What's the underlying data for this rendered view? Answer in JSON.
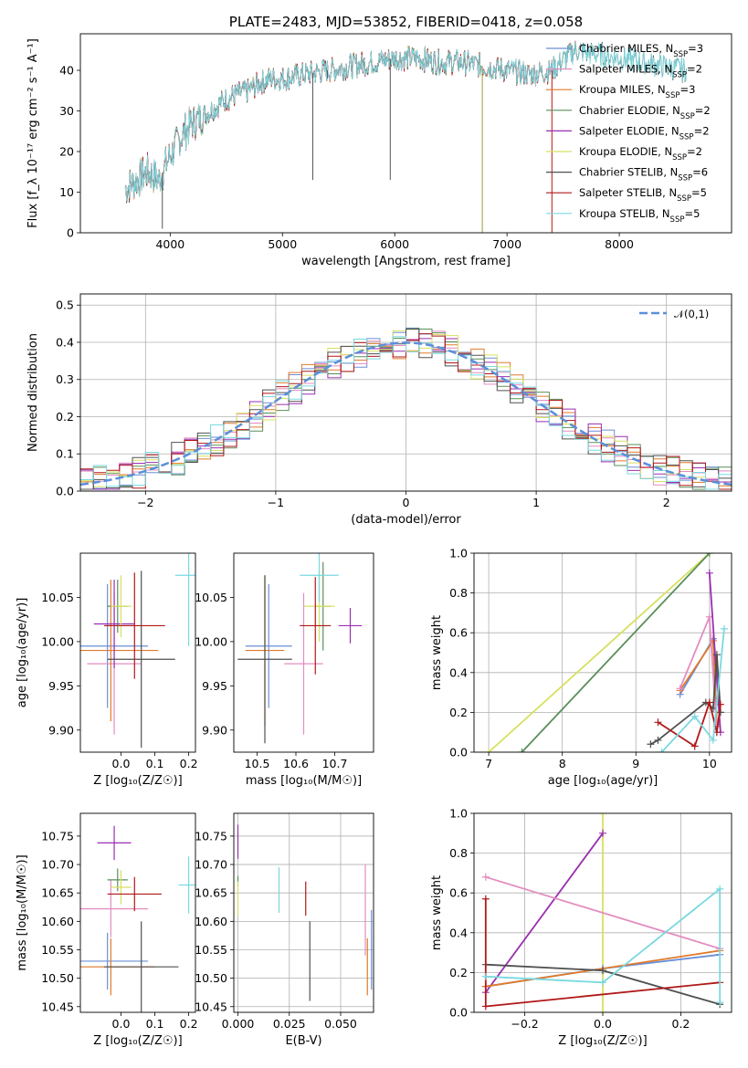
{
  "colors": {
    "Chabrier MILES": "#6a8fd8",
    "Salpeter MILES": "#e48cc0",
    "Kroupa MILES": "#e07a2a",
    "Chabrier ELODIE": "#5a8f5a",
    "Salpeter ELODIE": "#9a2fb0",
    "Kroupa ELODIE": "#d8e060",
    "Chabrier STELIB": "#505050",
    "Salpeter STELIB": "#b01818",
    "Kroupa STELIB": "#7ad8e0",
    "normal": "#5b8fd9"
  },
  "chart_data": [
    {
      "id": "spectrum",
      "type": "line",
      "title": "PLATE=2483, MJD=53852, FIBERID=0418, z=0.058",
      "xlabel": "wavelength [Angstrom, rest frame]",
      "ylabel": "Flux [f_λ 10⁻¹⁷ erg cm⁻² s⁻¹ A⁻¹]",
      "xlim": [
        3200,
        9000
      ],
      "ylim": [
        0,
        49
      ],
      "x_ticks": [
        4000,
        5000,
        6000,
        7000,
        8000
      ],
      "y_ticks": [
        0,
        10,
        20,
        30,
        40
      ],
      "grid": false,
      "legend_position": "right",
      "continuum": {
        "x": [
          3600,
          3700,
          3800,
          3900,
          4000,
          4100,
          4200,
          4300,
          4400,
          4500,
          4600,
          4700,
          4800,
          4900,
          5000,
          5200,
          5400,
          5600,
          5800,
          6000,
          6200,
          6400,
          6600,
          6800,
          7000,
          7200,
          7400,
          7600,
          7800,
          8000,
          8200,
          8400,
          8600
        ],
        "y": [
          11,
          13,
          15,
          13,
          19,
          24,
          27,
          29,
          31,
          33,
          34,
          35,
          37,
          38,
          38,
          39,
          40,
          41,
          42,
          43,
          43,
          42,
          42,
          41,
          40,
          39,
          40,
          45,
          44,
          43,
          42,
          41,
          40
        ]
      },
      "dips": [
        {
          "x": 3930,
          "y": 1
        },
        {
          "x": 5270,
          "y": 13
        },
        {
          "x": 5400,
          "y": 38
        },
        {
          "x": 5960,
          "y": 13
        },
        {
          "x": 6780,
          "y": 0
        },
        {
          "x": 7400,
          "y": 0
        }
      ],
      "series": [
        {
          "name": "Chabrier MILES, N_SSP=3",
          "color_key": "Chabrier MILES",
          "x_end": 7700
        },
        {
          "name": "Salpeter MILES, N_SSP=2",
          "color_key": "Salpeter MILES",
          "x_end": 7700
        },
        {
          "name": "Kroupa MILES, N_SSP=3",
          "color_key": "Kroupa MILES",
          "x_end": 7700
        },
        {
          "name": "Chabrier ELODIE, N_SSP=2",
          "color_key": "Chabrier ELODIE",
          "x_end": 7000
        },
        {
          "name": "Salpeter ELODIE, N_SSP=2",
          "color_key": "Salpeter ELODIE",
          "x_end": 7000
        },
        {
          "name": "Kroupa ELODIE, N_SSP=2",
          "color_key": "Kroupa ELODIE",
          "x_end": 7000
        },
        {
          "name": "Chabrier STELIB, N_SSP=6",
          "color_key": "Chabrier STELIB",
          "x_end": 8600
        },
        {
          "name": "Salpeter STELIB, N_SSP=5",
          "color_key": "Salpeter STELIB",
          "x_end": 7400
        },
        {
          "name": "Kroupa STELIB, N_SSP=5",
          "color_key": "Kroupa STELIB",
          "x_end": 8600
        }
      ]
    },
    {
      "id": "residuals",
      "type": "histogram",
      "xlabel": "(data-model)/error",
      "ylabel": "Normed distribution",
      "xlim": [
        -2.5,
        2.5
      ],
      "ylim": [
        0,
        0.53
      ],
      "x_ticks": [
        -2,
        -1,
        0,
        1,
        2
      ],
      "y_ticks": [
        0.0,
        0.1,
        0.2,
        0.3,
        0.4,
        0.5
      ],
      "grid": true,
      "legend": {
        "label": "𝒩(0,1)",
        "position": "top-right"
      },
      "bin_width": 0.1
    },
    {
      "id": "age-vs-Z",
      "type": "errorbar",
      "xlabel": "Z [log₁₀(Z/Z☉)]",
      "ylabel": "age  [log₁₀(age/yr)]",
      "xlim": [
        -0.12,
        0.22
      ],
      "ylim": [
        9.875,
        10.1
      ],
      "x_ticks": [
        0.0,
        0.1,
        0.2
      ],
      "y_ticks": [
        9.9,
        9.95,
        10.0,
        10.05
      ],
      "grid": false,
      "points": [
        {
          "key": "Chabrier MILES",
          "x": -0.04,
          "xerr": 0.12,
          "y": 9.995,
          "yerr": 0.07
        },
        {
          "key": "Salpeter MILES",
          "x": -0.02,
          "xerr": 0.08,
          "y": 9.975,
          "yerr": 0.08
        },
        {
          "key": "Kroupa MILES",
          "x": -0.03,
          "xerr": 0.14,
          "y": 9.99,
          "yerr": 0.08
        },
        {
          "key": "Chabrier ELODIE",
          "x": -0.01,
          "xerr": 0.03,
          "y": 10.04,
          "yerr": 0.03
        },
        {
          "key": "Salpeter ELODIE",
          "x": -0.02,
          "xerr": 0.06,
          "y": 10.02,
          "yerr": 0.05
        },
        {
          "key": "Kroupa ELODIE",
          "x": 0.0,
          "xerr": 0.03,
          "y": 10.04,
          "yerr": 0.035
        },
        {
          "key": "Chabrier STELIB",
          "x": 0.06,
          "xerr": 0.1,
          "y": 9.98,
          "yerr": 0.1
        },
        {
          "key": "Salpeter STELIB",
          "x": 0.04,
          "xerr": 0.09,
          "y": 10.018,
          "yerr": 0.06
        },
        {
          "key": "Kroupa STELIB",
          "x": 0.2,
          "xerr": 0.04,
          "y": 10.075,
          "yerr": 0.08
        }
      ]
    },
    {
      "id": "age-vs-mass",
      "type": "errorbar",
      "xlabel": "mass [log₁₀(M/M☉)]",
      "ylabel": "",
      "xlim": [
        10.44,
        10.8
      ],
      "ylim": [
        9.875,
        10.1
      ],
      "x_ticks": [
        10.5,
        10.6,
        10.7
      ],
      "y_ticks": [
        9.9,
        9.95,
        10.0,
        10.05
      ],
      "grid": false,
      "points": [
        {
          "key": "Chabrier MILES",
          "x": 10.53,
          "xerr": 0.06,
          "y": 9.995,
          "yerr": 0.07
        },
        {
          "key": "Salpeter MILES",
          "x": 10.62,
          "xerr": 0.05,
          "y": 9.975,
          "yerr": 0.08
        },
        {
          "key": "Kroupa MILES",
          "x": 10.52,
          "xerr": 0.05,
          "y": 9.99,
          "yerr": 0.085
        },
        {
          "key": "Chabrier ELODIE",
          "x": 10.67,
          "xerr": 0.02,
          "y": 10.04,
          "yerr": 0.05
        },
        {
          "key": "Salpeter ELODIE",
          "x": 10.74,
          "xerr": 0.03,
          "y": 10.018,
          "yerr": 0.02
        },
        {
          "key": "Kroupa ELODIE",
          "x": 10.66,
          "xerr": 0.04,
          "y": 10.04,
          "yerr": 0.04
        },
        {
          "key": "Chabrier STELIB",
          "x": 10.52,
          "xerr": 0.07,
          "y": 9.98,
          "yerr": 0.095
        },
        {
          "key": "Salpeter STELIB",
          "x": 10.65,
          "xerr": 0.04,
          "y": 10.018,
          "yerr": 0.055
        },
        {
          "key": "Kroupa STELIB",
          "x": 10.66,
          "xerr": 0.05,
          "y": 10.075,
          "yerr": 0.03
        }
      ]
    },
    {
      "id": "weight-vs-age",
      "type": "line",
      "xlabel": "age  [log₁₀(age/yr)]",
      "ylabel": "mass weight",
      "xlim": [
        6.8,
        10.3
      ],
      "ylim": [
        0,
        1
      ],
      "x_ticks": [
        7,
        8,
        9,
        10
      ],
      "y_ticks": [
        0.0,
        0.2,
        0.4,
        0.6,
        0.8,
        1.0
      ],
      "grid": true,
      "series": [
        {
          "key": "Kroupa ELODIE",
          "x": [
            7.0,
            10.0
          ],
          "y": [
            0.0,
            1.0
          ]
        },
        {
          "key": "Chabrier ELODIE",
          "x": [
            7.45,
            10.0
          ],
          "y": [
            0.0,
            1.0
          ]
        },
        {
          "key": "Chabrier MILES",
          "x": [
            9.6,
            10.05,
            10.1
          ],
          "y": [
            0.29,
            0.57,
            0.14
          ]
        },
        {
          "key": "Kroupa MILES",
          "x": [
            9.6,
            10.05,
            10.1
          ],
          "y": [
            0.31,
            0.56,
            0.13
          ]
        },
        {
          "key": "Salpeter MILES",
          "x": [
            9.6,
            10.0,
            10.1
          ],
          "y": [
            0.32,
            0.68,
            0.1
          ]
        },
        {
          "key": "Salpeter ELODIE",
          "x": [
            10.0,
            10.15
          ],
          "y": [
            0.9,
            0.1
          ]
        },
        {
          "key": "Chabrier STELIB",
          "x": [
            9.2,
            9.3,
            9.95,
            10.05,
            10.1,
            10.15
          ],
          "y": [
            0.04,
            0.06,
            0.25,
            0.22,
            0.49,
            0.2
          ]
        },
        {
          "key": "Salpeter STELIB",
          "x": [
            9.3,
            9.8,
            10.0,
            10.1,
            10.15
          ],
          "y": [
            0.15,
            0.03,
            0.25,
            0.1,
            0.24
          ]
        },
        {
          "key": "Kroupa STELIB",
          "x": [
            9.35,
            9.8,
            10.05,
            10.2
          ],
          "y": [
            0.0,
            0.18,
            0.06,
            0.62
          ]
        }
      ]
    },
    {
      "id": "mass-vs-Z",
      "type": "errorbar",
      "xlabel": "Z [log₁₀(Z/Z☉)]",
      "ylabel": "mass [log₁₀(M/M☉)]",
      "xlim": [
        -0.12,
        0.22
      ],
      "ylim": [
        10.44,
        10.79
      ],
      "x_ticks": [
        0.0,
        0.1,
        0.2
      ],
      "y_ticks": [
        10.45,
        10.5,
        10.55,
        10.6,
        10.65,
        10.7,
        10.75
      ],
      "grid": false,
      "points": [
        {
          "key": "Chabrier MILES",
          "x": -0.04,
          "xerr": 0.12,
          "y": 10.53,
          "yerr": 0.05
        },
        {
          "key": "Salpeter MILES",
          "x": -0.03,
          "xerr": 0.11,
          "y": 10.622,
          "yerr": 0.05
        },
        {
          "key": "Kroupa MILES",
          "x": -0.03,
          "xerr": 0.13,
          "y": 10.52,
          "yerr": 0.05
        },
        {
          "key": "Chabrier ELODIE",
          "x": -0.01,
          "xerr": 0.03,
          "y": 10.673,
          "yerr": 0.02
        },
        {
          "key": "Salpeter ELODIE",
          "x": -0.02,
          "xerr": 0.05,
          "y": 10.738,
          "yerr": 0.03
        },
        {
          "key": "Kroupa ELODIE",
          "x": 0.0,
          "xerr": 0.03,
          "y": 10.66,
          "yerr": 0.03
        },
        {
          "key": "Chabrier STELIB",
          "x": 0.06,
          "xerr": 0.11,
          "y": 10.52,
          "yerr": 0.08
        },
        {
          "key": "Salpeter STELIB",
          "x": 0.04,
          "xerr": 0.08,
          "y": 10.648,
          "yerr": 0.03
        },
        {
          "key": "Kroupa STELIB",
          "x": 0.2,
          "xerr": 0.03,
          "y": 10.664,
          "yerr": 0.05
        }
      ]
    },
    {
      "id": "mass-vs-ebv",
      "type": "errorbar",
      "xlabel": "E(B-V)",
      "ylabel": "",
      "xlim": [
        -0.002,
        0.066
      ],
      "ylim": [
        10.44,
        10.79
      ],
      "x_ticks": [
        0.0,
        0.025,
        0.05
      ],
      "y_ticks": [
        10.45,
        10.5,
        10.55,
        10.6,
        10.65,
        10.7,
        10.75
      ],
      "grid": true,
      "points": [
        {
          "key": "Chabrier MILES",
          "x": 0.065,
          "xerr": 0.0,
          "y": 10.55,
          "yerr": 0.07
        },
        {
          "key": "Salpeter MILES",
          "x": 0.062,
          "xerr": 0.0,
          "y": 10.62,
          "yerr": 0.08
        },
        {
          "key": "Kroupa MILES",
          "x": 0.063,
          "xerr": 0.0,
          "y": 10.52,
          "yerr": 0.05
        },
        {
          "key": "Chabrier ELODIE",
          "x": 0.0,
          "xerr": 0.0,
          "y": 10.67,
          "yerr": 0.01
        },
        {
          "key": "Salpeter ELODIE",
          "x": 0.0,
          "xerr": 0.0,
          "y": 10.74,
          "yerr": 0.03
        },
        {
          "key": "Kroupa ELODIE",
          "x": 0.0,
          "xerr": 0.0,
          "y": 10.64,
          "yerr": 0.03
        },
        {
          "key": "Chabrier STELIB",
          "x": 0.035,
          "xerr": 0.0,
          "y": 10.53,
          "yerr": 0.07
        },
        {
          "key": "Salpeter STELIB",
          "x": 0.033,
          "xerr": 0.0,
          "y": 10.64,
          "yerr": 0.03
        },
        {
          "key": "Kroupa STELIB",
          "x": 0.02,
          "xerr": 0.0,
          "y": 10.655,
          "yerr": 0.04
        }
      ]
    },
    {
      "id": "weight-vs-Z",
      "type": "line",
      "xlabel": "Z [log₁₀(Z/Z☉)]",
      "ylabel": "mass weight",
      "xlim": [
        -0.33,
        0.33
      ],
      "ylim": [
        0,
        1
      ],
      "x_ticks": [
        -0.2,
        0.0,
        0.2
      ],
      "y_ticks": [
        0.0,
        0.2,
        0.4,
        0.6,
        0.8,
        1.0
      ],
      "grid": true,
      "series": [
        {
          "key": "Kroupa ELODIE",
          "x": [
            0.0,
            0.0
          ],
          "y": [
            0.0,
            1.0
          ]
        },
        {
          "key": "Salpeter ELODIE",
          "x": [
            -0.3,
            0.0
          ],
          "y": [
            0.1,
            0.9
          ]
        },
        {
          "key": "Salpeter MILES",
          "x": [
            -0.3,
            0.3
          ],
          "y": [
            0.68,
            0.32
          ]
        },
        {
          "key": "Chabrier MILES",
          "x": [
            -0.3,
            0.0,
            0.3
          ],
          "y": [
            0.13,
            0.22,
            0.29
          ]
        },
        {
          "key": "Kroupa MILES",
          "x": [
            -0.3,
            0.3
          ],
          "y": [
            0.13,
            0.31
          ]
        },
        {
          "key": "Chabrier STELIB",
          "x": [
            -0.3,
            0.0,
            0.3
          ],
          "y": [
            0.24,
            0.21,
            0.04
          ]
        },
        {
          "key": "Salpeter STELIB",
          "x": [
            -0.3,
            -0.3,
            0.3
          ],
          "y": [
            0.57,
            0.03,
            0.15
          ]
        },
        {
          "key": "Kroupa STELIB",
          "x": [
            -0.3,
            0.0,
            0.3,
            0.3
          ],
          "y": [
            0.18,
            0.15,
            0.62,
            0.05
          ]
        }
      ]
    }
  ]
}
